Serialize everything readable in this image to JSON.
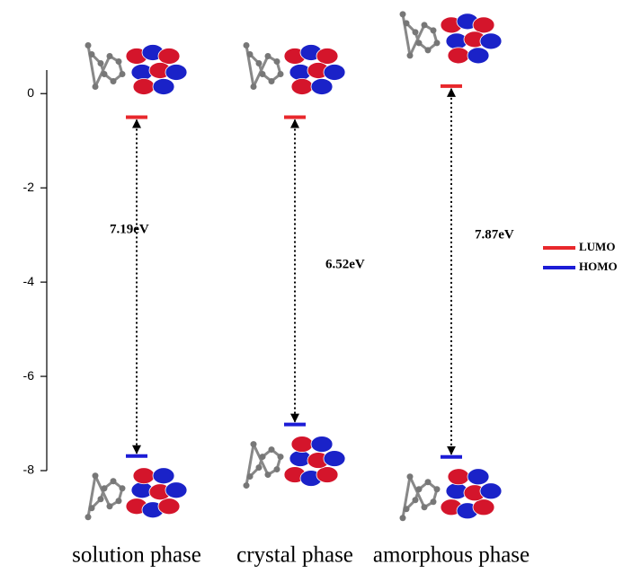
{
  "chart_data": {
    "type": "energy-levels",
    "categories": [
      "solution phase",
      "crystal phase",
      "amorphous phase"
    ],
    "series": [
      {
        "name": "LUMO",
        "color": "#e8282c",
        "values": [
          -0.5,
          -0.5,
          0.16
        ]
      },
      {
        "name": "HOMO",
        "color": "#1c1cd6",
        "values": [
          -7.69,
          -7.02,
          -7.71
        ]
      }
    ],
    "gaps": {
      "values": [
        7.19,
        6.52,
        7.87
      ],
      "value_labels": [
        "7.19eV",
        "6.52eV",
        "7.87eV"
      ]
    },
    "ylim": [
      -8,
      0.5
    ],
    "yticks": [
      0,
      -2,
      -4,
      -6,
      -8
    ],
    "legend": "right"
  }
}
